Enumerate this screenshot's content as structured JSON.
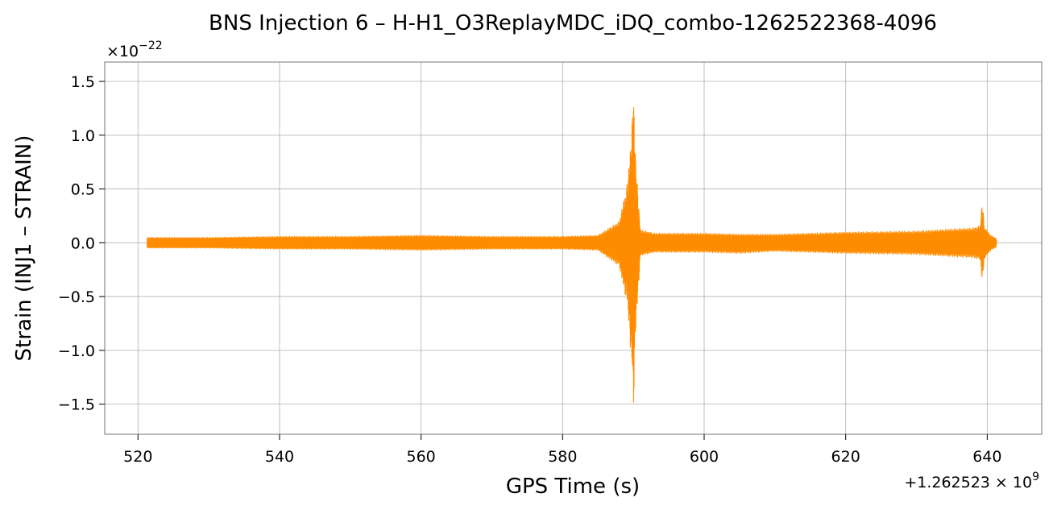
{
  "chart_data": {
    "type": "line",
    "title": "BNS Injection 6 – H-H1_O3ReplayMDC_iDQ_combo-1262522368-4096",
    "xlabel": "GPS Time (s)",
    "ylabel": "Strain (INJ1 – STRAIN)",
    "x_offset_label": "+1.262523 × 10^9",
    "y_scale_label": "×10^-22",
    "xlim": [
      515.3,
      647.7
    ],
    "ylim": [
      -1.78,
      1.68
    ],
    "x_ticks": [
      520,
      540,
      560,
      580,
      600,
      620,
      640
    ],
    "x_tick_labels": [
      "520",
      "540",
      "560",
      "580",
      "600",
      "620",
      "640"
    ],
    "y_ticks": [
      -1.5,
      -1.0,
      -0.5,
      0.0,
      0.5,
      1.0,
      1.5
    ],
    "y_tick_labels": [
      "−1.5",
      "−1.0",
      "−0.5",
      "0.0",
      "0.5",
      "1.0",
      "1.5"
    ],
    "grid": true,
    "series": [
      {
        "color": "#ff8c00",
        "envelope": {
          "x": [
            521.3,
            530,
            540,
            550,
            560,
            570,
            580,
            585,
            588,
            589.2,
            589.8,
            590.0,
            590.3,
            591,
            593,
            600,
            605,
            610,
            620,
            630,
            635,
            638,
            639.0,
            639.3,
            639.6,
            640.5,
            641.3
          ],
          "upper": [
            0.05,
            0.05,
            0.06,
            0.06,
            0.07,
            0.06,
            0.06,
            0.07,
            0.2,
            0.58,
            1.1,
            1.53,
            0.8,
            0.12,
            0.09,
            0.09,
            0.08,
            0.08,
            0.1,
            0.11,
            0.13,
            0.14,
            0.16,
            0.4,
            0.15,
            0.07,
            0.04
          ],
          "lower": [
            -0.05,
            -0.05,
            -0.06,
            -0.06,
            -0.07,
            -0.06,
            -0.06,
            -0.07,
            -0.22,
            -0.6,
            -1.2,
            -1.62,
            -0.85,
            -0.12,
            -0.09,
            -0.09,
            -0.1,
            -0.08,
            -0.1,
            -0.11,
            -0.13,
            -0.14,
            -0.16,
            -0.37,
            -0.15,
            -0.07,
            -0.04
          ]
        }
      }
    ]
  }
}
